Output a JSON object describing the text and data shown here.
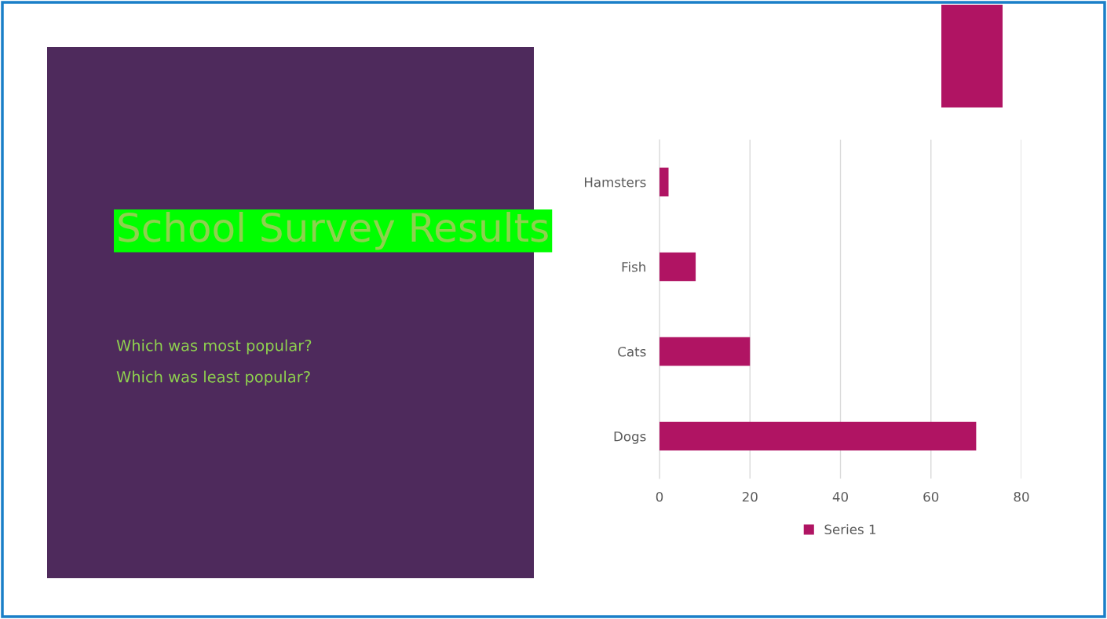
{
  "chart_data": {
    "type": "bar",
    "orientation": "horizontal",
    "title": "School Survey Results",
    "annotations": [
      "Which was most popular?",
      "Which was least popular?"
    ],
    "categories": [
      "Hamsters",
      "Fish",
      "Cats",
      "Dogs"
    ],
    "series": [
      {
        "name": "Series 1",
        "color": "#b01463",
        "values": [
          2,
          8,
          20,
          70
        ]
      }
    ],
    "xlim": [
      0,
      80
    ],
    "xticks": [
      0,
      20,
      40,
      60,
      80
    ],
    "grid": "x",
    "legend": "bottom"
  }
}
